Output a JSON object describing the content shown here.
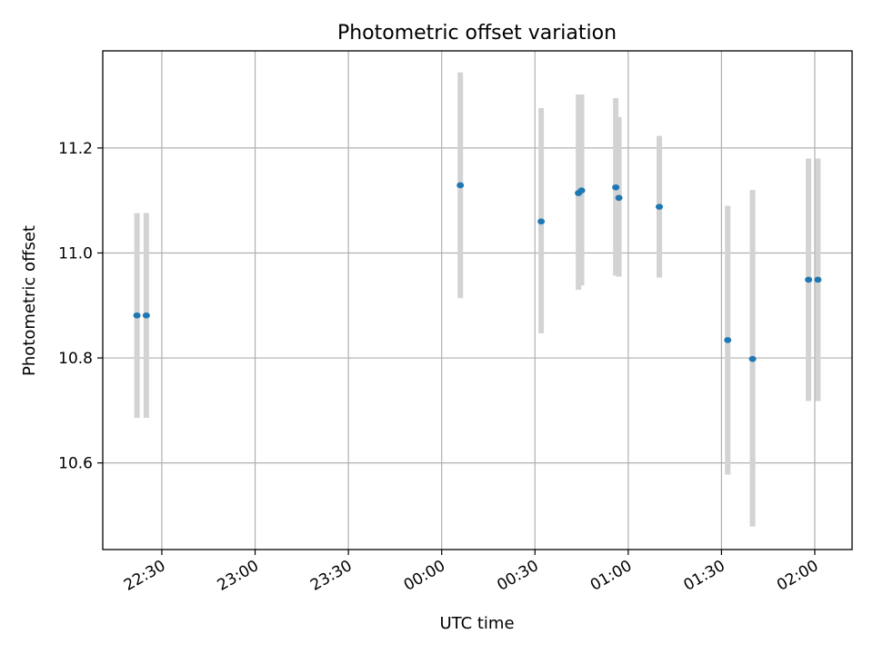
{
  "chart_data": {
    "type": "scatter",
    "title": "Photometric offset variation",
    "xlabel": "UTC time",
    "ylabel": "Photometric offset",
    "x_axis": {
      "kind": "time",
      "range": [
        "22:11",
        "02:12"
      ],
      "ticks": [
        "22:30",
        "23:00",
        "23:30",
        "00:00",
        "00:30",
        "01:00",
        "01:30",
        "02:00"
      ]
    },
    "y_axis": {
      "range": [
        10.435,
        11.385
      ],
      "ticks": [
        10.6,
        10.8,
        11.0,
        11.2
      ],
      "tick_labels": [
        "10.6",
        "10.8",
        "11.0",
        "11.2"
      ]
    },
    "grid": true,
    "colors": {
      "marker": "#1f77b4",
      "errorbar": "#d3d3d3",
      "grid": "#b0b0b0"
    },
    "points": [
      {
        "x": "22:22",
        "y": 10.881,
        "ylo": 10.686,
        "yhi": 11.076
      },
      {
        "x": "22:25",
        "y": 10.881,
        "ylo": 10.686,
        "yhi": 11.076
      },
      {
        "x": "00:06",
        "y": 11.129,
        "ylo": 10.914,
        "yhi": 11.344
      },
      {
        "x": "00:32",
        "y": 11.06,
        "ylo": 10.847,
        "yhi": 11.276
      },
      {
        "x": "00:44",
        "y": 11.114,
        "ylo": 10.93,
        "yhi": 11.302
      },
      {
        "x": "00:45",
        "y": 11.119,
        "ylo": 10.938,
        "yhi": 11.302
      },
      {
        "x": "00:56",
        "y": 11.125,
        "ylo": 10.957,
        "yhi": 11.295
      },
      {
        "x": "00:57",
        "y": 11.105,
        "ylo": 10.955,
        "yhi": 11.259
      },
      {
        "x": "01:10",
        "y": 11.088,
        "ylo": 10.953,
        "yhi": 11.223
      },
      {
        "x": "01:32",
        "y": 10.834,
        "ylo": 10.578,
        "yhi": 11.09
      },
      {
        "x": "01:40",
        "y": 10.798,
        "ylo": 10.479,
        "yhi": 11.12
      },
      {
        "x": "01:58",
        "y": 10.949,
        "ylo": 10.718,
        "yhi": 11.18
      },
      {
        "x": "02:01",
        "y": 10.949,
        "ylo": 10.718,
        "yhi": 11.18
      }
    ]
  }
}
